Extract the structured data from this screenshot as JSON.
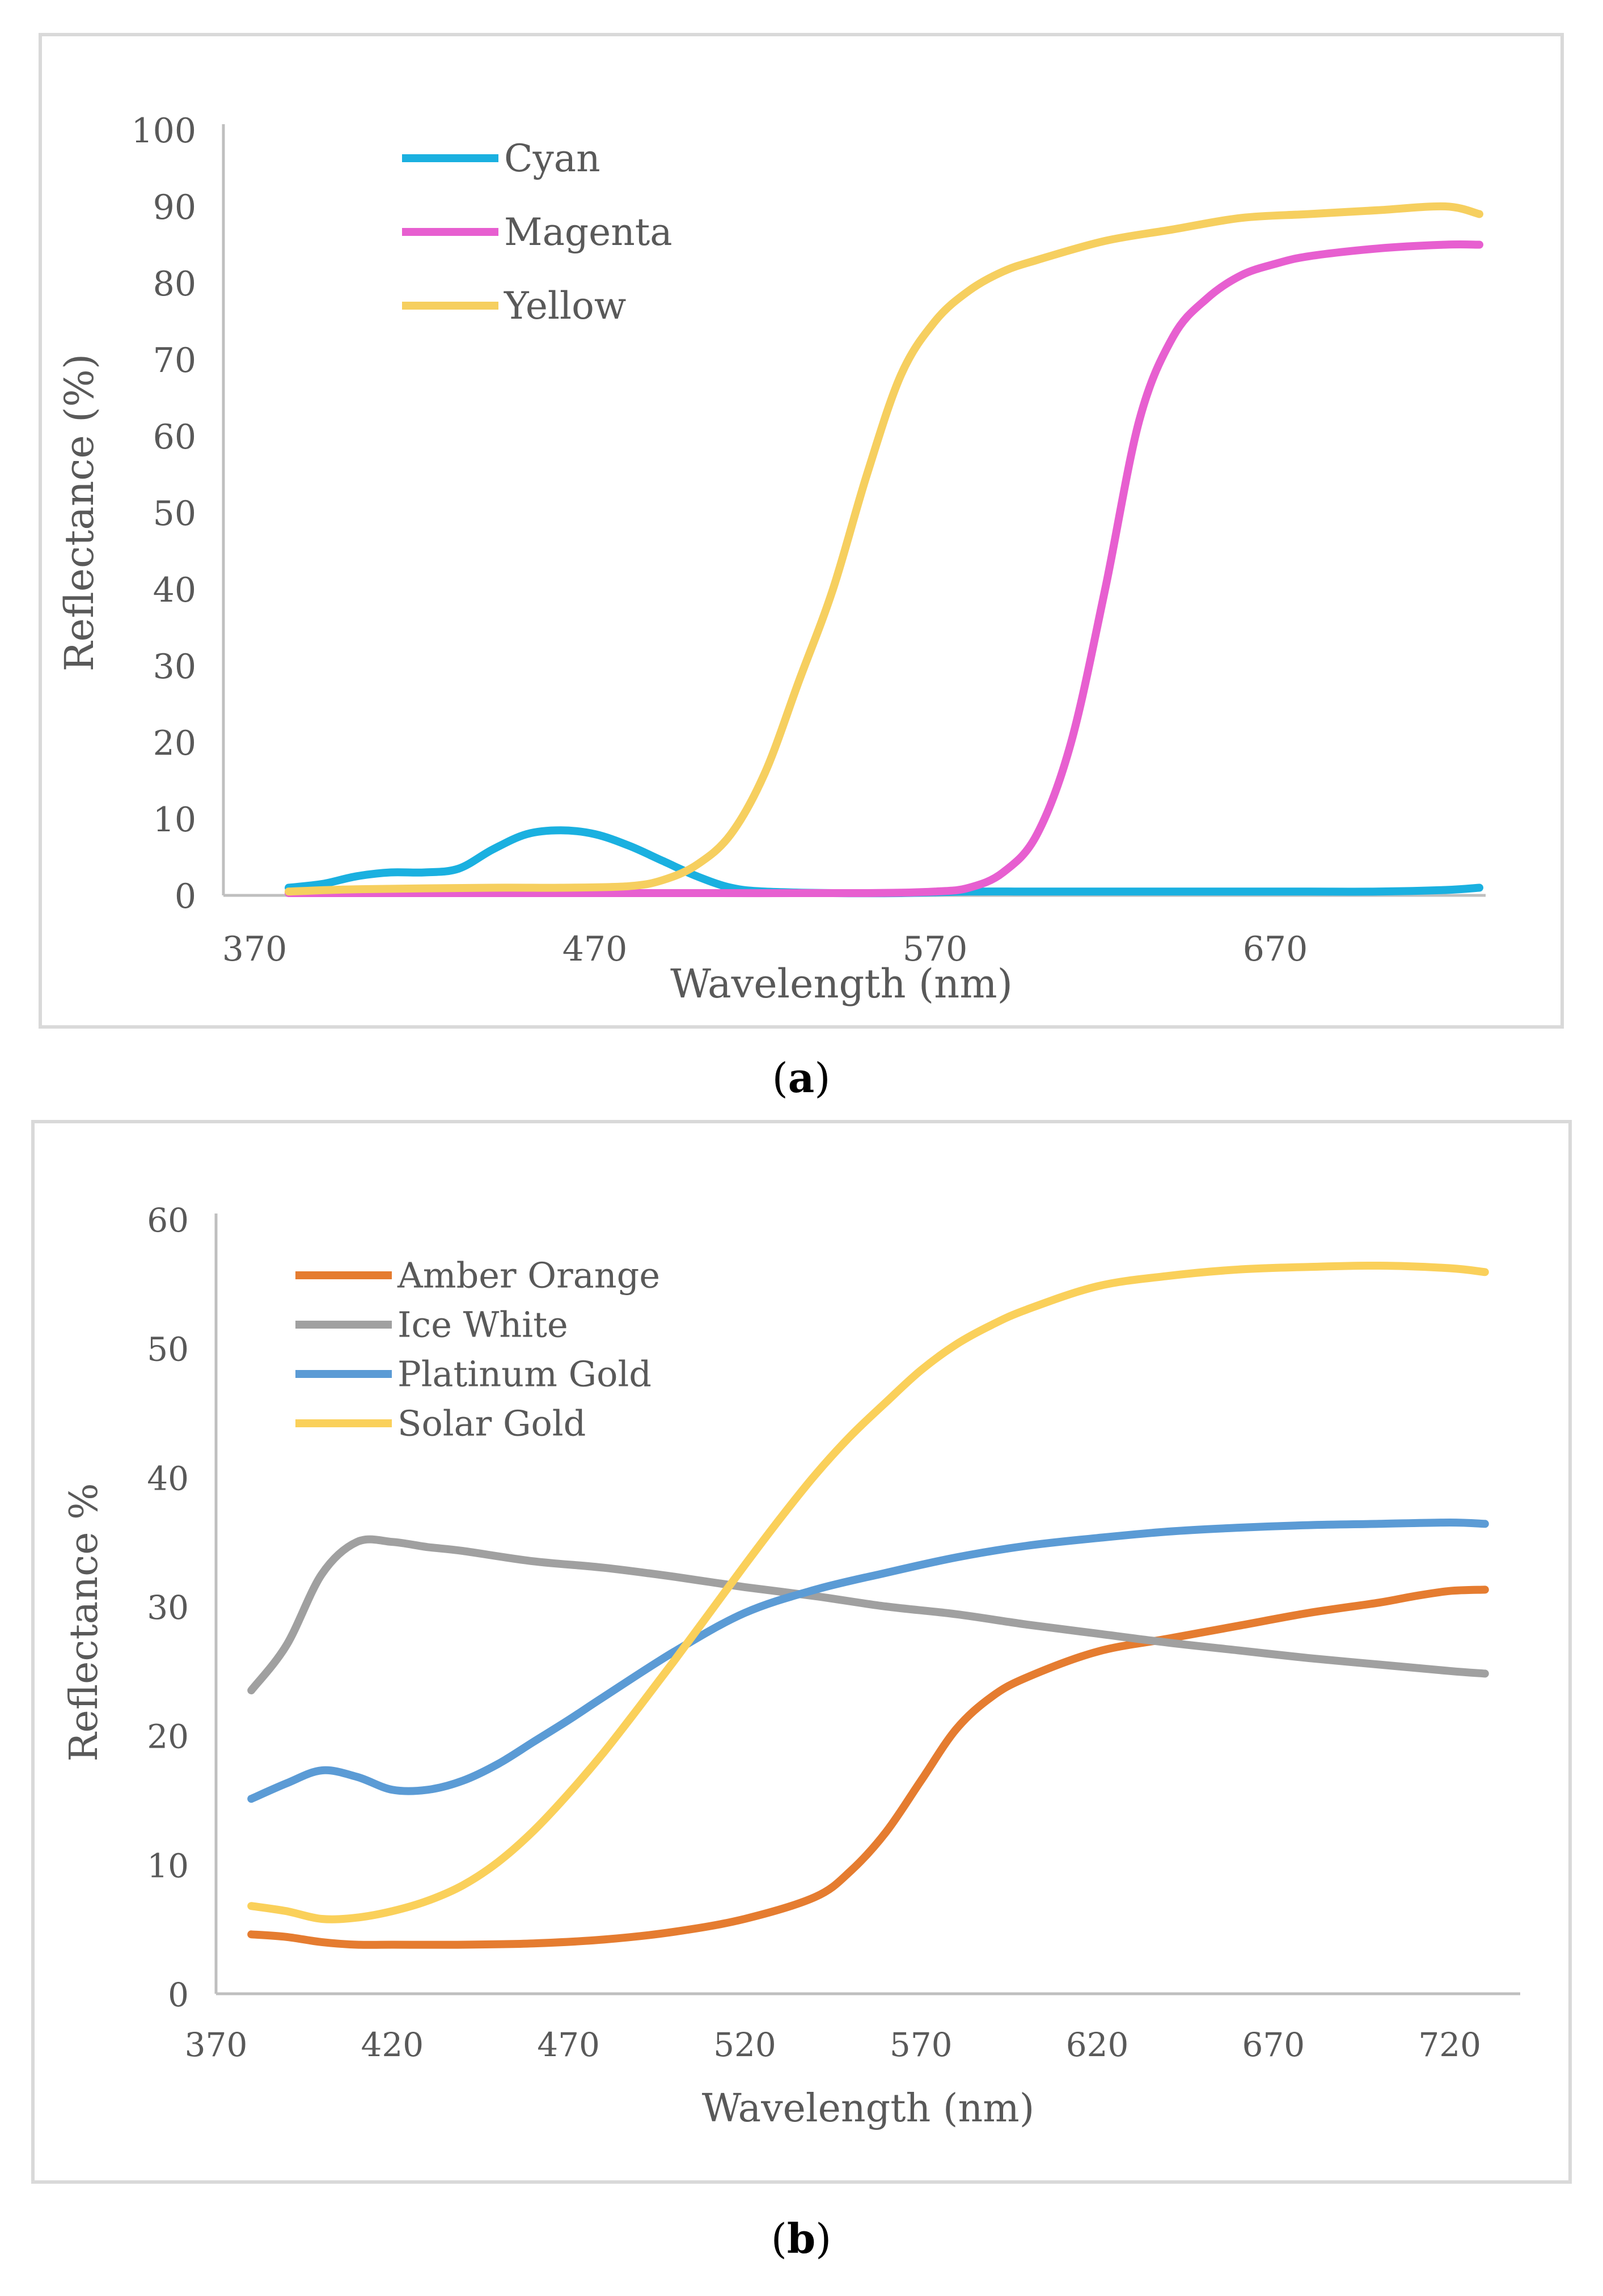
{
  "chart_data": [
    {
      "type": "line",
      "panel_label": "a",
      "title": "",
      "xlabel": "Wavelength (nm)",
      "ylabel": "Reflectance (%)",
      "xlim": [
        370,
        730
      ],
      "ylim": [
        0,
        100
      ],
      "x_ticks": [
        "370",
        "470",
        "570",
        "670"
      ],
      "y_ticks": [
        "0",
        "10",
        "20",
        "30",
        "40",
        "50",
        "60",
        "70",
        "80",
        "90",
        "100"
      ],
      "legend_position": "top-left",
      "series": [
        {
          "name": "Cyan",
          "color": "#1ab0e0",
          "x": [
            380,
            390,
            400,
            410,
            420,
            430,
            440,
            450,
            460,
            470,
            480,
            490,
            500,
            510,
            520,
            540,
            560,
            580,
            600,
            620,
            640,
            660,
            680,
            700,
            720,
            740
          ],
          "y": [
            1,
            1.5,
            2.5,
            3,
            3,
            3.5,
            6,
            8,
            8.5,
            8,
            6.5,
            4.5,
            2.5,
            1,
            0.5,
            0.3,
            0.3,
            0.5,
            0.5,
            0.5,
            0.5,
            0.5,
            0.5,
            0.5,
            0.7,
            1
          ]
        },
        {
          "name": "Magenta",
          "color": "#e75fd0",
          "x": [
            380,
            400,
            450,
            500,
            550,
            570,
            580,
            590,
            600,
            610,
            620,
            630,
            640,
            650,
            660,
            670,
            680,
            700,
            720,
            740
          ],
          "y": [
            0.3,
            0.3,
            0.3,
            0.3,
            0.3,
            0.5,
            1,
            3,
            8,
            20,
            40,
            62,
            73,
            78,
            81,
            82.5,
            83.5,
            84.5,
            85,
            85
          ]
        },
        {
          "name": "Yellow",
          "color": "#f6cf5f",
          "x": [
            380,
            400,
            440,
            460,
            480,
            490,
            500,
            510,
            520,
            530,
            540,
            550,
            560,
            570,
            580,
            590,
            600,
            620,
            640,
            660,
            680,
            700,
            720,
            740
          ],
          "y": [
            0.5,
            0.8,
            1,
            1,
            1.2,
            2,
            4,
            8,
            16,
            28,
            40,
            55,
            68,
            75,
            79,
            81.5,
            83,
            85.5,
            87,
            88.5,
            89,
            89.5,
            90,
            89
          ]
        }
      ]
    },
    {
      "type": "line",
      "panel_label": "b",
      "title": "",
      "xlabel": "Wavelength (nm)",
      "ylabel": "Reflectance %",
      "xlim": [
        370,
        740
      ],
      "ylim": [
        0,
        60
      ],
      "x_ticks": [
        "370",
        "420",
        "470",
        "520",
        "570",
        "620",
        "670",
        "720"
      ],
      "y_ticks": [
        "0",
        "10",
        "20",
        "30",
        "40",
        "50",
        "60"
      ],
      "legend_position": "top-left",
      "series": [
        {
          "name": "Amber Orange",
          "color": "#e57c30",
          "x": [
            380,
            390,
            400,
            410,
            420,
            440,
            460,
            480,
            500,
            520,
            540,
            550,
            560,
            570,
            580,
            590,
            600,
            620,
            640,
            660,
            680,
            700,
            710,
            720,
            730
          ],
          "y": [
            4.6,
            4.4,
            4,
            3.8,
            3.8,
            3.8,
            3.9,
            4.2,
            4.8,
            5.8,
            7.5,
            9.5,
            12.5,
            16.5,
            20.5,
            23,
            24.5,
            26.5,
            27.5,
            28.5,
            29.5,
            30.3,
            30.8,
            31.2,
            31.3
          ]
        },
        {
          "name": "Ice White",
          "color": "#a0a0a0",
          "x": [
            380,
            390,
            400,
            410,
            420,
            430,
            440,
            460,
            480,
            500,
            520,
            540,
            560,
            580,
            600,
            620,
            640,
            660,
            680,
            700,
            720,
            730
          ],
          "y": [
            23.5,
            27,
            32.5,
            35,
            35,
            34.6,
            34.3,
            33.5,
            33,
            32.3,
            31.5,
            30.8,
            30,
            29.4,
            28.6,
            27.9,
            27.2,
            26.6,
            26,
            25.5,
            25,
            24.8
          ]
        },
        {
          "name": "Platinum Gold",
          "color": "#5b9bd5",
          "x": [
            380,
            390,
            400,
            410,
            420,
            430,
            440,
            450,
            460,
            470,
            480,
            500,
            520,
            540,
            560,
            580,
            600,
            620,
            640,
            660,
            680,
            700,
            720,
            730
          ],
          "y": [
            15.1,
            16.3,
            17.3,
            16.8,
            15.8,
            15.8,
            16.5,
            17.8,
            19.5,
            21.2,
            23,
            26.5,
            29.5,
            31.3,
            32.6,
            33.8,
            34.7,
            35.3,
            35.8,
            36.1,
            36.3,
            36.4,
            36.5,
            36.4
          ]
        },
        {
          "name": "Solar Gold",
          "color": "#fad05a",
          "x": [
            380,
            390,
            400,
            410,
            420,
            430,
            440,
            450,
            460,
            470,
            480,
            490,
            500,
            510,
            520,
            530,
            540,
            550,
            560,
            570,
            580,
            590,
            600,
            620,
            640,
            660,
            680,
            700,
            720,
            730
          ],
          "y": [
            6.8,
            6.4,
            5.8,
            5.9,
            6.4,
            7.2,
            8.4,
            10.2,
            12.6,
            15.5,
            18.7,
            22.2,
            25.8,
            29.5,
            33.2,
            36.8,
            40.2,
            43.2,
            45.8,
            48.3,
            50.3,
            51.8,
            53,
            54.8,
            55.6,
            56.1,
            56.3,
            56.4,
            56.2,
            55.9
          ]
        }
      ]
    }
  ],
  "captions": {
    "a": "a",
    "b": "b"
  }
}
